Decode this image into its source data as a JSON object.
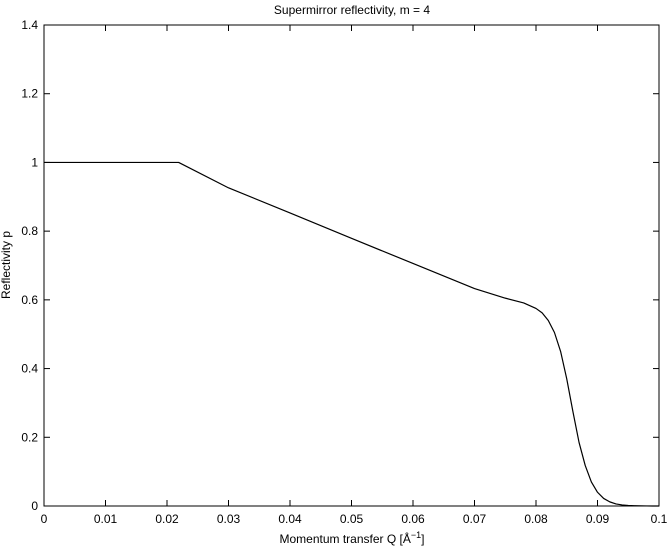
{
  "chart_data": {
    "type": "line",
    "title": "Supermirror reflectivity, m = 4",
    "xlabel": "Momentum transfer Q [Å",
    "xlabel_exponent": "−1",
    "xlabel_suffix": "]",
    "ylabel": "Reflectivity p",
    "xlim": [
      0,
      0.1
    ],
    "ylim": [
      0,
      1.4
    ],
    "x_ticks": [
      "0",
      "0.01",
      "0.02",
      "0.03",
      "0.04",
      "0.05",
      "0.06",
      "0.07",
      "0.08",
      "0.09",
      "0.1"
    ],
    "y_ticks": [
      "0",
      "0.2",
      "0.4",
      "0.6",
      "0.8",
      "1",
      "1.2",
      "1.4"
    ],
    "grid": false,
    "series": [
      {
        "color": "#000000",
        "x": [
          0,
          0.0219,
          0.03,
          0.04,
          0.05,
          0.06,
          0.07,
          0.075,
          0.078,
          0.08,
          0.081,
          0.082,
          0.083,
          0.084,
          0.085,
          0.086,
          0.087,
          0.088,
          0.089,
          0.09,
          0.091,
          0.092,
          0.093,
          0.094,
          0.095,
          0.096,
          0.097,
          0.098,
          0.099,
          0.1
        ],
        "y": [
          1.0,
          1.0,
          0.926,
          0.853,
          0.779,
          0.706,
          0.633,
          0.605,
          0.591,
          0.575,
          0.562,
          0.54,
          0.505,
          0.45,
          0.37,
          0.275,
          0.185,
          0.118,
          0.07,
          0.04,
          0.022,
          0.012,
          0.006,
          0.003,
          0.0015,
          0.0008,
          0.0004,
          0.0002,
          0.0001,
          0.0
        ]
      }
    ]
  }
}
